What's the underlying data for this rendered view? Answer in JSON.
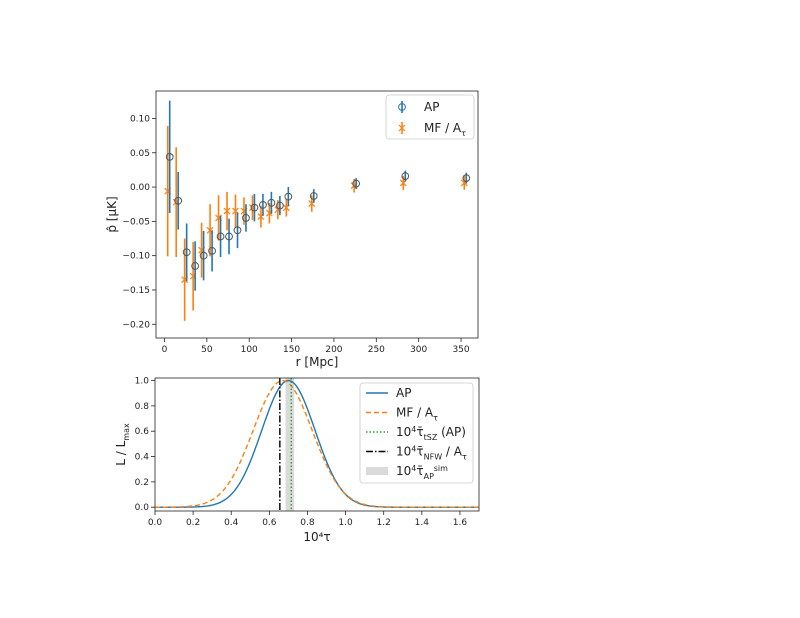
{
  "chart_data": [
    {
      "type": "scatter",
      "xlabel": "r [Mpc]",
      "ylabel": "p̂ [μK]",
      "xlim": [
        -10,
        370
      ],
      "ylim": [
        -0.22,
        0.14
      ],
      "xticks": [
        0,
        50,
        100,
        150,
        200,
        250,
        300,
        350
      ],
      "yticks": [
        -0.2,
        -0.15,
        -0.1,
        -0.05,
        0.0,
        0.05,
        0.1
      ],
      "ytick_labels": [
        "−0.20",
        "−0.15",
        "−0.10",
        "−0.05",
        "0.00",
        "0.05",
        "0.10"
      ],
      "legend": {
        "placement": "top-right"
      },
      "series": [
        {
          "name": "AP",
          "color": "#1f77b4",
          "marker": "open-circle",
          "x": [
            5,
            15,
            25,
            35,
            45,
            55,
            65,
            75,
            85,
            95,
            105,
            115,
            125,
            135,
            145,
            175,
            225,
            283,
            355
          ],
          "y": [
            0.044,
            -0.02,
            -0.095,
            -0.115,
            -0.1,
            -0.093,
            -0.072,
            -0.072,
            -0.063,
            -0.045,
            -0.03,
            -0.026,
            -0.023,
            -0.027,
            -0.014,
            -0.013,
            0.005,
            0.016,
            0.013
          ],
          "err": [
            0.082,
            0.042,
            0.042,
            0.036,
            0.036,
            0.03,
            0.03,
            0.026,
            0.026,
            0.02,
            0.02,
            0.016,
            0.016,
            0.014,
            0.014,
            0.01,
            0.008,
            0.008,
            0.008
          ]
        },
        {
          "name": "MF / A_τ",
          "color": "#ff7f0e",
          "marker": "x",
          "x": [
            5,
            15,
            25,
            35,
            45,
            55,
            65,
            75,
            85,
            95,
            105,
            115,
            125,
            135,
            145,
            175,
            225,
            283,
            355
          ],
          "y": [
            -0.006,
            -0.022,
            -0.135,
            -0.13,
            -0.092,
            -0.063,
            -0.045,
            -0.035,
            -0.035,
            -0.035,
            -0.03,
            -0.043,
            -0.038,
            -0.033,
            -0.03,
            -0.024,
            0.002,
            0.006,
            0.006
          ],
          "err": [
            0.095,
            0.08,
            0.06,
            0.05,
            0.04,
            0.038,
            0.033,
            0.028,
            0.024,
            0.02,
            0.018,
            0.016,
            0.015,
            0.014,
            0.013,
            0.012,
            0.01,
            0.01,
            0.01
          ]
        }
      ]
    },
    {
      "type": "line",
      "xlabel": "10⁴τ",
      "ylabel": "L / L_max",
      "xlim": [
        0.0,
        1.7
      ],
      "ylim": [
        -0.03,
        1.02
      ],
      "xticks": [
        0.0,
        0.2,
        0.4,
        0.6,
        0.8,
        1.0,
        1.2,
        1.4,
        1.6
      ],
      "yticks": [
        0.0,
        0.2,
        0.4,
        0.6,
        0.8,
        1.0
      ],
      "legend": {
        "placement": "top-right"
      },
      "series": [
        {
          "name": "AP",
          "color": "#1f77b4",
          "style": "solid",
          "gaussian": {
            "mean": 0.7,
            "sigma": 0.14
          }
        },
        {
          "name": "MF / A_τ",
          "color": "#ff7f0e",
          "style": "dashed",
          "gaussian": {
            "mean": 0.67,
            "sigma": 0.155
          }
        },
        {
          "name": "10⁴τ̄_tSZ (AP)",
          "color": "#2ca02c",
          "style": "dotted",
          "vline": 0.715
        },
        {
          "name": "10⁴τ̄_NFW / A_τ",
          "color": "#000000",
          "style": "dashdot",
          "vline": 0.655
        },
        {
          "name": "10⁴τ̄_AP^sim",
          "color": "#bbbbbb",
          "style": "band",
          "band": [
            0.685,
            0.73
          ]
        }
      ]
    }
  ]
}
